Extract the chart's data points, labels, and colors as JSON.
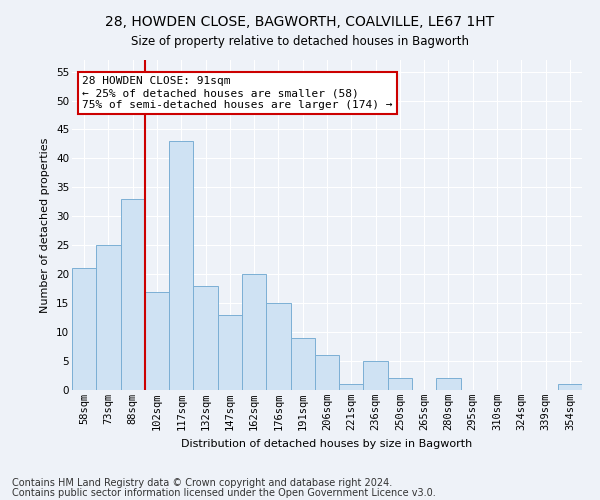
{
  "title": "28, HOWDEN CLOSE, BAGWORTH, COALVILLE, LE67 1HT",
  "subtitle": "Size of property relative to detached houses in Bagworth",
  "xlabel": "Distribution of detached houses by size in Bagworth",
  "ylabel": "Number of detached properties",
  "bar_labels": [
    "58sqm",
    "73sqm",
    "88sqm",
    "102sqm",
    "117sqm",
    "132sqm",
    "147sqm",
    "162sqm",
    "176sqm",
    "191sqm",
    "206sqm",
    "221sqm",
    "236sqm",
    "250sqm",
    "265sqm",
    "280sqm",
    "295sqm",
    "310sqm",
    "324sqm",
    "339sqm",
    "354sqm"
  ],
  "bar_values": [
    21,
    25,
    33,
    17,
    43,
    18,
    13,
    20,
    15,
    9,
    6,
    1,
    5,
    2,
    0,
    2,
    0,
    0,
    0,
    0,
    1
  ],
  "bar_color": "#cfe2f3",
  "bar_edge_color": "#7bafd4",
  "vline_x_index": 2,
  "vline_color": "#cc0000",
  "annotation_text": "28 HOWDEN CLOSE: 91sqm\n← 25% of detached houses are smaller (58)\n75% of semi-detached houses are larger (174) →",
  "annotation_box_color": "#ffffff",
  "annotation_box_edge": "#cc0000",
  "ylim": [
    0,
    57
  ],
  "yticks": [
    0,
    5,
    10,
    15,
    20,
    25,
    30,
    35,
    40,
    45,
    50,
    55
  ],
  "footnote1": "Contains HM Land Registry data © Crown copyright and database right 2024.",
  "footnote2": "Contains public sector information licensed under the Open Government Licence v3.0.",
  "title_fontsize": 10,
  "axis_label_fontsize": 8,
  "tick_fontsize": 7.5,
  "annotation_fontsize": 8,
  "footnote_fontsize": 7,
  "background_color": "#eef2f8",
  "plot_bg_color": "#eef2f8",
  "grid_color": "#ffffff",
  "title_color": "#000000"
}
